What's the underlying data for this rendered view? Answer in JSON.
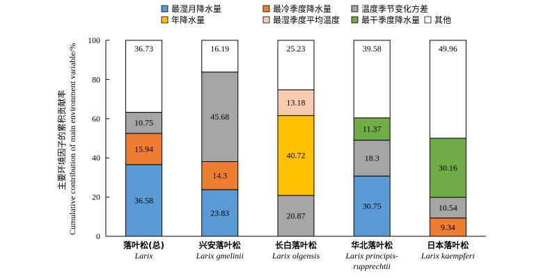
{
  "chart_data": {
    "type": "bar",
    "stacked": true,
    "ylabel_cn": "主要环境因子的累积贡献率",
    "ylabel_en": "Cumulative contribution of main environment variable/%",
    "ylim": [
      0,
      100
    ],
    "yticks": [
      "0",
      "20",
      "40",
      "60",
      "80",
      "100"
    ],
    "legend_position": "top",
    "categories": [
      {
        "name": "落叶松(总)",
        "sci": [
          "Larix"
        ]
      },
      {
        "name": "兴安落叶松",
        "sci": [
          "Larix gmelinii"
        ]
      },
      {
        "name": "长白落叶松",
        "sci": [
          "Larix olgensis"
        ]
      },
      {
        "name": "华北落叶松",
        "sci": [
          "Larix principis-",
          "rupprechtii"
        ]
      },
      {
        "name": "日本落叶松",
        "sci": [
          "Larix kaempferi"
        ]
      }
    ],
    "series": [
      {
        "name": "最湿月降水量",
        "color": "#5B9BD5",
        "values": [
          36.58,
          23.83,
          null,
          30.75,
          null
        ]
      },
      {
        "name": "最冷季度降水量",
        "color": "#ED7D31",
        "values": [
          15.94,
          14.3,
          null,
          null,
          9.34
        ]
      },
      {
        "name": "温度季节变化方差",
        "color": "#A5A5A5",
        "values": [
          10.75,
          45.68,
          20.87,
          18.3,
          10.54
        ]
      },
      {
        "name": "年降水量",
        "color": "#FFC000",
        "values": [
          null,
          null,
          40.72,
          null,
          null
        ]
      },
      {
        "name": "最湿季度平均温度",
        "color": "#F8CBAD",
        "values": [
          null,
          null,
          13.18,
          null,
          null
        ]
      },
      {
        "name": "最干季度降水量",
        "color": "#70AD47",
        "values": [
          null,
          null,
          null,
          11.37,
          30.16
        ]
      },
      {
        "name": "其他",
        "color": "#FFFFFF",
        "values": [
          36.73,
          16.19,
          25.23,
          39.58,
          49.96
        ]
      }
    ],
    "stack_order": [
      [
        "最湿月降水量",
        "最冷季度降水量",
        "温度季节变化方差",
        "其他"
      ],
      [
        "最湿月降水量",
        "最冷季度降水量",
        "温度季节变化方差",
        "其他"
      ],
      [
        "温度季节变化方差",
        "年降水量",
        "最湿季度平均温度",
        "其他"
      ],
      [
        "最湿月降水量",
        "温度季节变化方差",
        "最干季度降水量",
        "其他"
      ],
      [
        "最冷季度降水量",
        "温度季节变化方差",
        "最干季度降水量",
        "其他"
      ]
    ]
  }
}
